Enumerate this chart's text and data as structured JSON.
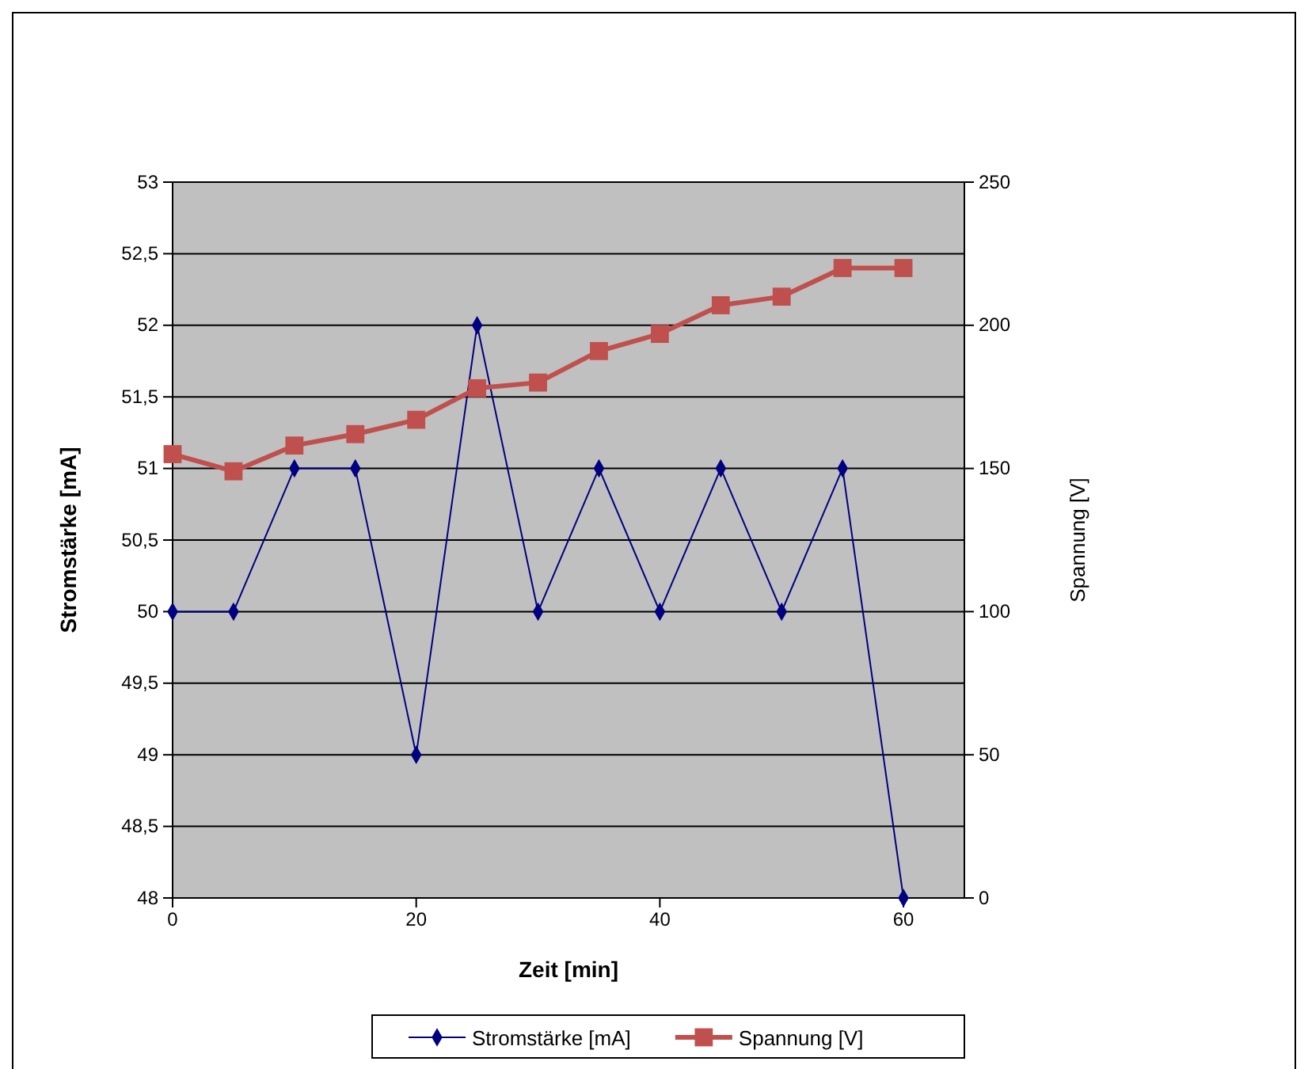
{
  "chart_data": {
    "type": "line",
    "xlabel": "Zeit [min]",
    "ylabel": "Stromstärke [mA]",
    "y2label": "Spannung [V]",
    "x": [
      0,
      5,
      10,
      15,
      20,
      25,
      30,
      35,
      40,
      45,
      50,
      55,
      60
    ],
    "series": [
      {
        "name": "Stromstärke [mA]",
        "color": "#000080",
        "marker": "diamond",
        "values": [
          50,
          50,
          51,
          51,
          49,
          52,
          50,
          51,
          50,
          51,
          50,
          51,
          48
        ]
      },
      {
        "name": "Spannung [V]",
        "color": "#c0504d",
        "marker": "square",
        "axis": "y2",
        "values": [
          155,
          149,
          158,
          162,
          167,
          178,
          180,
          191,
          197,
          207,
          210,
          220,
          220
        ]
      }
    ],
    "xlim": [
      0,
      65
    ],
    "xticks": [
      0,
      20,
      40,
      60
    ],
    "ylim": [
      48,
      53
    ],
    "yticks": [
      {
        "value": 48,
        "label": "48"
      },
      {
        "value": 48.5,
        "label": "48,5"
      },
      {
        "value": 49,
        "label": "49"
      },
      {
        "value": 49.5,
        "label": "49,5"
      },
      {
        "value": 50,
        "label": "50"
      },
      {
        "value": 50.5,
        "label": "50,5"
      },
      {
        "value": 51,
        "label": "51"
      },
      {
        "value": 51.5,
        "label": "51,5"
      },
      {
        "value": 52,
        "label": "52"
      },
      {
        "value": 52.5,
        "label": "52,5"
      },
      {
        "value": 53,
        "label": "53"
      }
    ],
    "y2lim": [
      0,
      250
    ],
    "y2ticks": [
      0,
      50,
      100,
      150,
      200,
      250
    ],
    "grid": "y",
    "legend": "bottom"
  }
}
